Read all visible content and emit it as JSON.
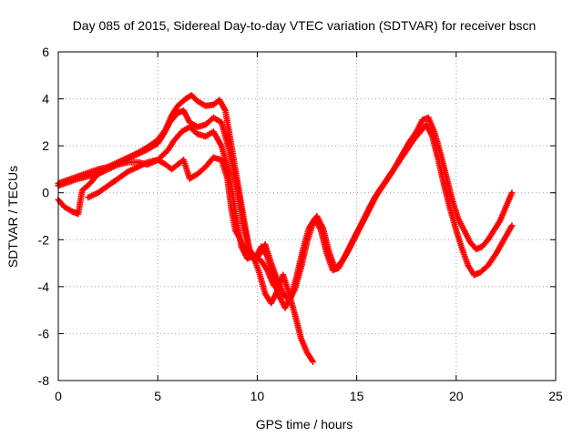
{
  "chart_data": {
    "type": "scatter",
    "title": "Day 085 of 2015, Sidereal Day-to-day VTEC variation (SDTVAR) for receiver bscn",
    "xlabel": "GPS time / hours",
    "ylabel": "SDTVAR / TECUs",
    "xlim": [
      0,
      25
    ],
    "ylim": [
      -8,
      6
    ],
    "xticks": [
      0,
      5,
      10,
      15,
      20,
      25
    ],
    "yticks": [
      -8,
      -6,
      -4,
      -2,
      0,
      2,
      4,
      6
    ],
    "grid": true,
    "marker": "+",
    "color": "#ff0000",
    "series": [
      {
        "values": [
          [
            0.0,
            0.4
          ],
          [
            0.5,
            0.55
          ],
          [
            1.0,
            0.7
          ],
          [
            1.5,
            0.85
          ],
          [
            2.0,
            1.0
          ],
          [
            2.5,
            1.1
          ],
          [
            3.0,
            1.3
          ],
          [
            3.5,
            1.5
          ],
          [
            4.0,
            1.7
          ],
          [
            4.5,
            1.95
          ],
          [
            5.0,
            2.25
          ],
          [
            5.4,
            2.7
          ],
          [
            5.7,
            3.3
          ],
          [
            6.0,
            3.7
          ],
          [
            6.4,
            4.0
          ],
          [
            6.7,
            4.15
          ],
          [
            7.0,
            3.9
          ],
          [
            7.4,
            3.7
          ],
          [
            7.8,
            3.75
          ],
          [
            8.1,
            3.95
          ],
          [
            8.4,
            3.5
          ],
          [
            8.7,
            2.0
          ],
          [
            9.0,
            0.5
          ],
          [
            9.3,
            -1.0
          ],
          [
            9.6,
            -2.4
          ],
          [
            9.9,
            -2.9
          ],
          [
            10.2,
            -2.5
          ],
          [
            10.4,
            -2.2
          ],
          [
            10.7,
            -3.0
          ],
          [
            11.0,
            -3.7
          ],
          [
            11.3,
            -4.3
          ],
          [
            11.6,
            -4.6
          ],
          [
            11.9,
            -4.1
          ],
          [
            12.2,
            -3.2
          ],
          [
            12.5,
            -2.1
          ],
          [
            12.8,
            -1.3
          ],
          [
            13.0,
            -1.0
          ],
          [
            13.3,
            -1.5
          ],
          [
            13.6,
            -2.5
          ],
          [
            13.9,
            -3.2
          ],
          [
            14.2,
            -3.0
          ],
          [
            14.5,
            -2.6
          ],
          [
            14.8,
            -2.1
          ],
          [
            15.1,
            -1.6
          ],
          [
            15.4,
            -1.1
          ],
          [
            15.7,
            -0.6
          ],
          [
            16.0,
            -0.1
          ],
          [
            16.4,
            0.4
          ],
          [
            16.8,
            0.9
          ],
          [
            17.2,
            1.5
          ],
          [
            17.6,
            2.1
          ],
          [
            18.0,
            2.6
          ],
          [
            18.3,
            3.1
          ],
          [
            18.6,
            3.2
          ],
          [
            18.9,
            2.6
          ],
          [
            19.2,
            1.7
          ],
          [
            19.5,
            0.7
          ],
          [
            19.8,
            -0.3
          ],
          [
            20.1,
            -1.1
          ],
          [
            20.4,
            -1.6
          ],
          [
            20.7,
            -2.1
          ],
          [
            21.0,
            -2.4
          ],
          [
            21.3,
            -2.3
          ],
          [
            21.6,
            -2.0
          ],
          [
            21.9,
            -1.6
          ],
          [
            22.2,
            -1.2
          ],
          [
            22.5,
            -0.6
          ],
          [
            22.8,
            0.0
          ]
        ]
      },
      {
        "values": [
          [
            0.0,
            0.3
          ],
          [
            0.5,
            0.45
          ],
          [
            1.0,
            0.6
          ],
          [
            1.5,
            0.7
          ],
          [
            2.0,
            0.8
          ],
          [
            2.5,
            1.05
          ],
          [
            3.0,
            1.25
          ],
          [
            3.5,
            1.45
          ],
          [
            4.0,
            1.65
          ],
          [
            4.5,
            1.85
          ],
          [
            5.0,
            2.1
          ],
          [
            5.3,
            2.5
          ],
          [
            5.6,
            3.0
          ],
          [
            6.0,
            3.4
          ],
          [
            6.3,
            3.5
          ],
          [
            6.6,
            3.0
          ],
          [
            7.0,
            2.8
          ],
          [
            7.4,
            2.9
          ],
          [
            7.8,
            3.2
          ],
          [
            8.2,
            3.0
          ],
          [
            8.6,
            1.8
          ],
          [
            9.0,
            0.2
          ],
          [
            9.3,
            -1.3
          ],
          [
            9.6,
            -2.4
          ],
          [
            9.9,
            -2.8
          ],
          [
            10.2,
            -2.3
          ],
          [
            10.5,
            -2.7
          ],
          [
            10.8,
            -3.6
          ],
          [
            11.1,
            -4.4
          ],
          [
            11.4,
            -4.9
          ],
          [
            11.7,
            -4.4
          ],
          [
            12.0,
            -3.5
          ],
          [
            12.3,
            -2.4
          ],
          [
            12.6,
            -1.5
          ],
          [
            12.9,
            -1.1
          ],
          [
            13.2,
            -1.6
          ],
          [
            13.5,
            -2.6
          ],
          [
            13.8,
            -3.3
          ],
          [
            14.1,
            -3.2
          ],
          [
            14.4,
            -2.7
          ],
          [
            14.7,
            -2.2
          ],
          [
            15.0,
            -1.7
          ],
          [
            15.3,
            -1.2
          ],
          [
            15.6,
            -0.7
          ],
          [
            15.9,
            -0.2
          ],
          [
            16.3,
            0.3
          ],
          [
            16.7,
            0.8
          ],
          [
            17.1,
            1.3
          ],
          [
            17.5,
            1.8
          ],
          [
            17.9,
            2.3
          ],
          [
            18.2,
            2.6
          ],
          [
            18.5,
            2.9
          ],
          [
            18.8,
            2.4
          ],
          [
            19.1,
            1.4
          ],
          [
            19.4,
            0.3
          ],
          [
            19.7,
            -0.7
          ],
          [
            20.0,
            -1.6
          ],
          [
            20.3,
            -2.4
          ],
          [
            20.6,
            -3.1
          ],
          [
            20.9,
            -3.5
          ],
          [
            21.2,
            -3.4
          ],
          [
            21.6,
            -3.1
          ],
          [
            22.0,
            -2.6
          ],
          [
            22.4,
            -2.0
          ],
          [
            22.8,
            -1.4
          ]
        ]
      },
      {
        "values": [
          [
            0.0,
            -0.3
          ],
          [
            0.3,
            -0.6
          ],
          [
            0.7,
            -0.8
          ],
          [
            1.0,
            -0.9
          ],
          [
            1.2,
            0.1
          ],
          [
            1.6,
            0.4
          ],
          [
            2.0,
            0.8
          ],
          [
            2.5,
            1.0
          ],
          [
            3.0,
            1.2
          ],
          [
            3.5,
            1.3
          ],
          [
            4.0,
            1.3
          ],
          [
            4.5,
            1.2
          ],
          [
            5.0,
            1.4
          ],
          [
            5.5,
            1.8
          ],
          [
            5.8,
            2.2
          ],
          [
            6.2,
            2.6
          ],
          [
            6.6,
            2.8
          ],
          [
            7.0,
            2.5
          ],
          [
            7.4,
            2.4
          ],
          [
            7.8,
            2.6
          ],
          [
            8.2,
            2.0
          ],
          [
            8.6,
            0.8
          ],
          [
            8.9,
            -0.8
          ],
          [
            9.2,
            -2.3
          ],
          [
            9.5,
            -2.8
          ],
          [
            9.8,
            -2.7
          ],
          [
            10.1,
            -3.4
          ],
          [
            10.4,
            -4.3
          ],
          [
            10.7,
            -4.7
          ],
          [
            11.0,
            -4.2
          ],
          [
            11.3,
            -3.5
          ],
          [
            11.6,
            -4.3
          ],
          [
            11.9,
            -5.2
          ],
          [
            12.2,
            -6.2
          ],
          [
            12.5,
            -6.8
          ],
          [
            12.8,
            -7.2
          ]
        ]
      },
      {
        "values": [
          [
            1.5,
            -0.2
          ],
          [
            2.0,
            0.0
          ],
          [
            2.5,
            0.3
          ],
          [
            3.0,
            0.6
          ],
          [
            3.5,
            0.9
          ],
          [
            4.0,
            1.1
          ],
          [
            4.5,
            1.3
          ],
          [
            5.0,
            1.4
          ],
          [
            5.4,
            1.2
          ],
          [
            5.7,
            1.0
          ],
          [
            6.0,
            1.2
          ],
          [
            6.3,
            1.4
          ],
          [
            6.6,
            0.6
          ],
          [
            7.0,
            0.8
          ],
          [
            7.4,
            1.1
          ],
          [
            7.8,
            1.5
          ],
          [
            8.2,
            1.4
          ],
          [
            8.5,
            0.6
          ],
          [
            8.7,
            -0.7
          ],
          [
            8.9,
            -1.6
          ],
          [
            9.1,
            -1.9
          ],
          [
            9.3,
            -2.3
          ],
          [
            9.6,
            -2.6
          ],
          [
            9.9,
            -2.7
          ],
          [
            10.2,
            -2.9
          ],
          [
            10.5,
            -3.3
          ],
          [
            10.8,
            -3.9
          ],
          [
            11.0,
            -4.1
          ]
        ]
      }
    ]
  }
}
